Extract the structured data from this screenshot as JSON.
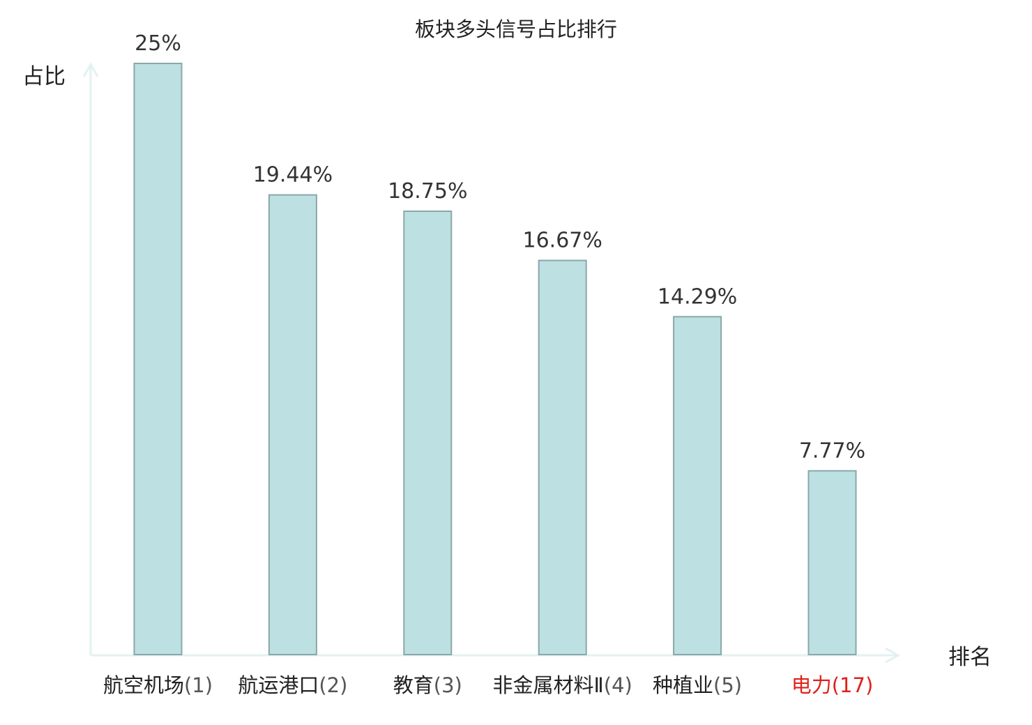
{
  "chart_data": {
    "type": "bar",
    "title": "板块多头信号占比排行",
    "ylabel": "占比",
    "xlabel": "排名",
    "ylim": [
      0,
      25
    ],
    "grid": false,
    "legend": "none",
    "categories": [
      {
        "name": "航空机场",
        "rank": "(1)",
        "highlight": false
      },
      {
        "name": "航运港口",
        "rank": "(2)",
        "highlight": false
      },
      {
        "name": "教育",
        "rank": "(3)",
        "highlight": false
      },
      {
        "name": "非金属材料Ⅱ",
        "rank": "(4)",
        "highlight": false
      },
      {
        "name": "种植业",
        "rank": "(5)",
        "highlight": false
      },
      {
        "name": "电力",
        "rank": "(17)",
        "highlight": true
      }
    ],
    "values": [
      25,
      19.44,
      18.75,
      16.67,
      14.29,
      7.77
    ],
    "value_labels": [
      "25%",
      "19.44%",
      "18.75%",
      "16.67%",
      "14.29%",
      "7.77%"
    ]
  },
  "colors": {
    "bar_fill": "#bde0e3",
    "bar_stroke": "#8aa7a9",
    "axis": "#e2f2f0",
    "text": "#222222",
    "rank_text": "#555555",
    "highlight": "#e0201c"
  }
}
